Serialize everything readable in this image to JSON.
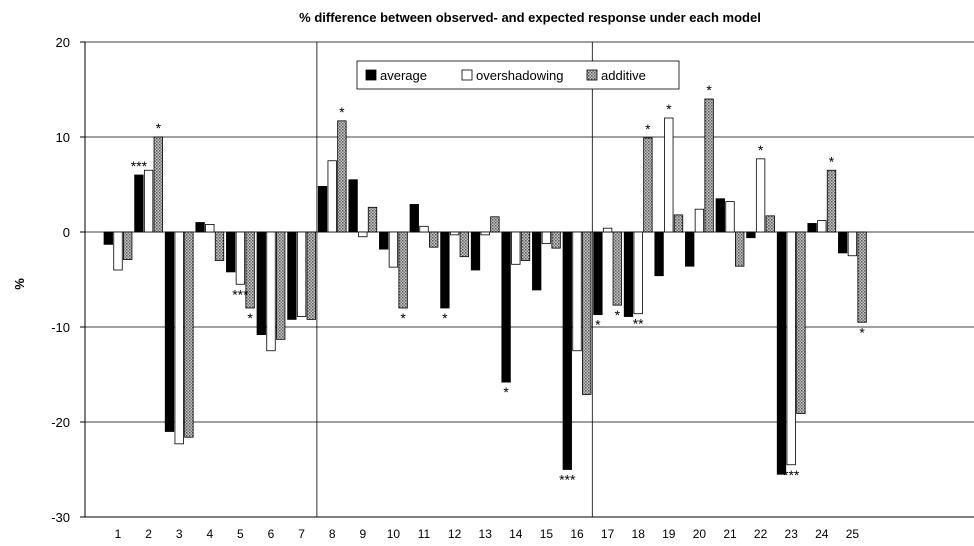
{
  "chart_data": {
    "type": "bar",
    "title": "% difference between observed- and expected response under each model",
    "ylabel": "%",
    "xlabel": "",
    "ylim": [
      -30,
      20
    ],
    "yticks": [
      "20",
      "10",
      "0",
      "-10",
      "-20",
      "-30"
    ],
    "grid": true,
    "legend_position": "top-center (middle panel)",
    "categories": [
      "1",
      "2",
      "3",
      "4",
      "5",
      "6",
      "7",
      "8",
      "9",
      "10",
      "11",
      "12",
      "13",
      "14",
      "15",
      "16",
      "17",
      "18",
      "19",
      "20",
      "21",
      "22",
      "23",
      "24",
      "25"
    ],
    "panels": [
      {
        "categories": [
          "1",
          "2",
          "3",
          "4",
          "5",
          "6",
          "7"
        ]
      },
      {
        "categories": [
          "8",
          "9",
          "10",
          "11",
          "12",
          "13",
          "14",
          "15",
          "16"
        ]
      },
      {
        "categories": [
          "17",
          "18",
          "19",
          "20",
          "21",
          "22",
          "23",
          "24",
          "25"
        ]
      }
    ],
    "series": [
      {
        "name": "average",
        "color": "#000000",
        "values": [
          -1.3,
          6.0,
          -21.0,
          1.0,
          -4.2,
          -10.8,
          -9.2,
          4.8,
          5.5,
          -1.8,
          2.9,
          -8.0,
          -4.0,
          -15.8,
          -6.1,
          -25.0,
          -8.7,
          -8.9,
          -4.6,
          -3.6,
          3.5,
          -0.6,
          -25.5,
          0.9,
          -2.2
        ]
      },
      {
        "name": "overshadowing",
        "color": "#ffffff",
        "values": [
          -4.0,
          6.5,
          -22.3,
          0.8,
          -5.5,
          -12.5,
          -8.9,
          7.5,
          -0.5,
          -3.7,
          0.6,
          -0.3,
          -0.3,
          -3.4,
          -1.2,
          -12.5,
          0.4,
          -8.6,
          12.0,
          2.4,
          3.2,
          7.7,
          -24.5,
          1.2,
          -2.5
        ]
      },
      {
        "name": "additive",
        "color": "#a0a0a0",
        "values": [
          -2.9,
          10.0,
          -21.6,
          -3.0,
          -8.0,
          -11.3,
          -9.2,
          11.7,
          2.6,
          -8.0,
          -1.6,
          -2.6,
          1.6,
          -3.0,
          -1.7,
          -17.1,
          -7.7,
          9.9,
          1.8,
          14.0,
          -3.6,
          1.7,
          -19.1,
          6.5,
          -9.5
        ]
      }
    ],
    "annotations": [
      {
        "text": "*",
        "category": "2",
        "series": "additive"
      },
      {
        "text": "***",
        "category": "2",
        "series": "average"
      },
      {
        "text": "*",
        "category": "5",
        "series": "additive"
      },
      {
        "text": "***",
        "category": "5",
        "series": "overshadowing"
      },
      {
        "text": "*",
        "category": "8",
        "series": "additive"
      },
      {
        "text": "*",
        "category": "10",
        "series": "additive"
      },
      {
        "text": "*",
        "category": "12",
        "series": "average"
      },
      {
        "text": "*",
        "category": "14",
        "series": "average"
      },
      {
        "text": "***",
        "category": "16",
        "series": "average"
      },
      {
        "text": "*",
        "category": "17",
        "series": "average"
      },
      {
        "text": "*",
        "category": "17",
        "series": "additive"
      },
      {
        "text": "**",
        "category": "18",
        "series": "overshadowing"
      },
      {
        "text": "*",
        "category": "18",
        "series": "additive"
      },
      {
        "text": "*",
        "category": "19",
        "series": "overshadowing"
      },
      {
        "text": "*",
        "category": "20",
        "series": "additive"
      },
      {
        "text": "*",
        "category": "22",
        "series": "overshadowing"
      },
      {
        "text": "***",
        "category": "23",
        "series": "overshadowing"
      },
      {
        "text": "*",
        "category": "24",
        "series": "additive"
      },
      {
        "text": "*",
        "category": "25",
        "series": "additive"
      }
    ]
  }
}
